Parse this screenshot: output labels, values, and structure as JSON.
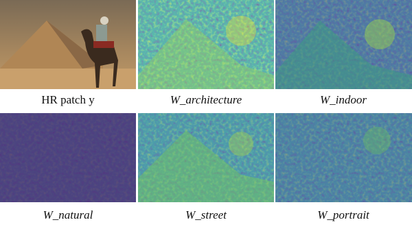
{
  "panels": [
    {
      "caption": "HR patch y"
    },
    {
      "caption": "W_architecture"
    },
    {
      "caption": "W_indoor"
    },
    {
      "caption": "W_natural"
    },
    {
      "caption": "W_street"
    },
    {
      "caption": "W_portrait"
    }
  ]
}
